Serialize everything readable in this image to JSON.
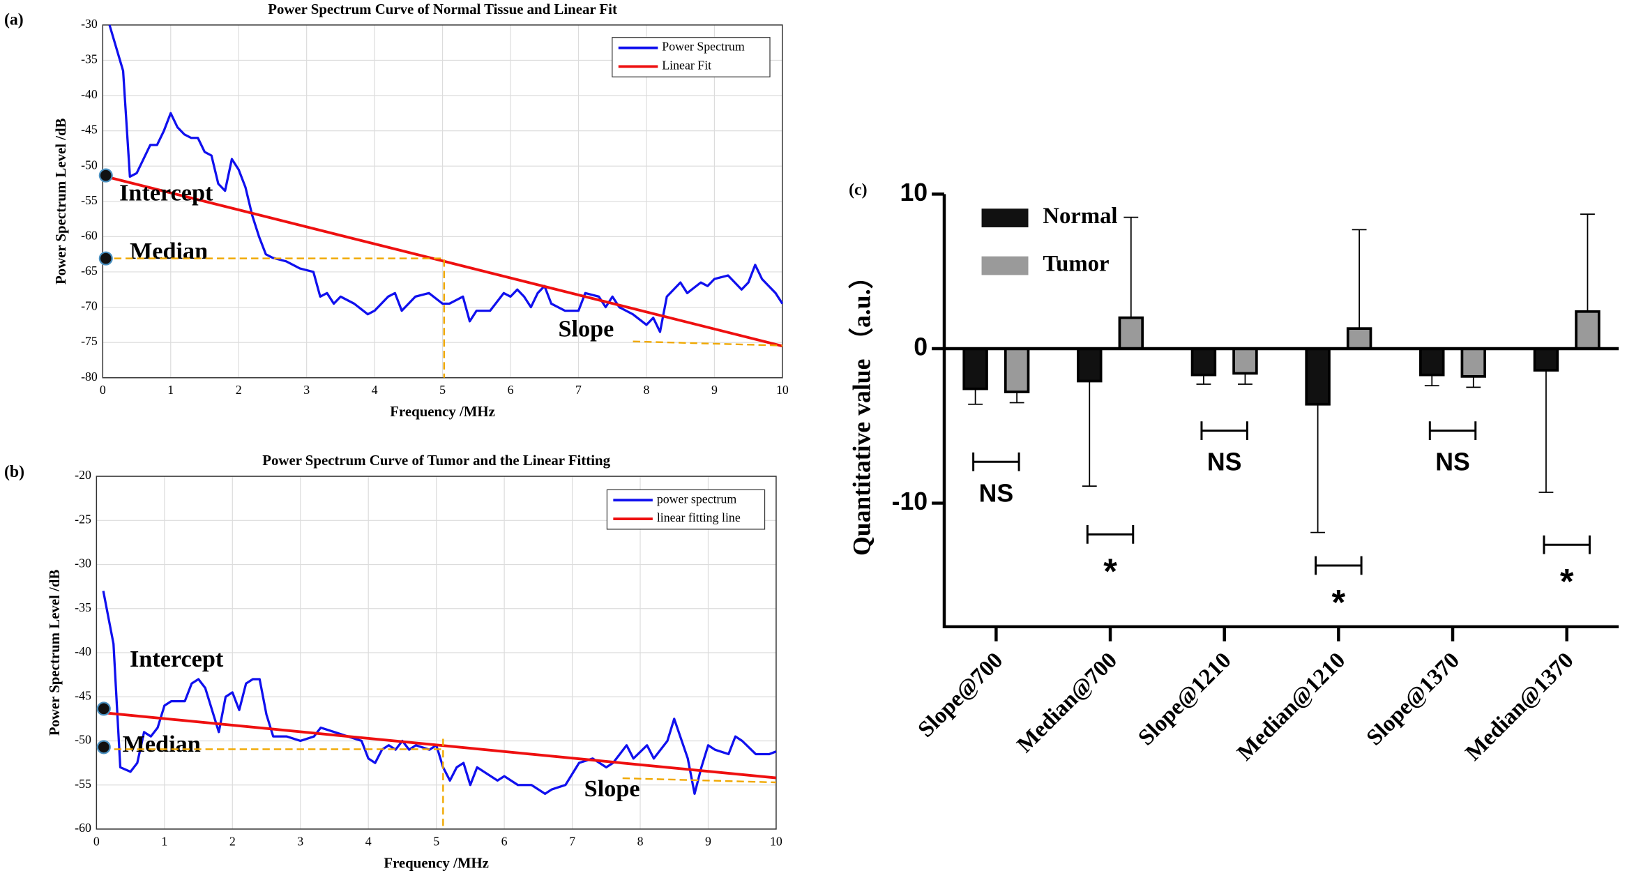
{
  "chart_data": [
    {
      "type": "line",
      "panel_label": "(a)",
      "title": "Power Spectrum Curve of Normal Tissue and Linear Fit",
      "xlabel": "Frequency /MHz",
      "ylabel": "Power Spectrum Level /dB",
      "xlim": [
        0,
        10
      ],
      "ylim": [
        -80,
        -30
      ],
      "xticks": [
        0,
        1,
        2,
        3,
        4,
        5,
        6,
        7,
        8,
        9,
        10
      ],
      "yticks": [
        -80,
        -75,
        -70,
        -65,
        -60,
        -55,
        -50,
        -45,
        -40,
        -35,
        -30
      ],
      "grid": true,
      "legend": "upper right",
      "annotations": [
        "Intercept",
        "Median",
        "Slope"
      ],
      "series": [
        {
          "name": "Power Spectrum",
          "color": "#1010ee",
          "x": [
            0.1,
            0.3,
            0.4,
            0.5,
            0.6,
            0.7,
            0.8,
            0.9,
            1.0,
            1.1,
            1.2,
            1.3,
            1.4,
            1.5,
            1.6,
            1.7,
            1.8,
            1.9,
            2.0,
            2.1,
            2.2,
            2.3,
            2.4,
            2.5,
            2.7,
            2.9,
            3.1,
            3.2,
            3.3,
            3.4,
            3.5,
            3.7,
            3.9,
            4.0,
            4.2,
            4.3,
            4.4,
            4.6,
            4.8,
            5.0,
            5.1,
            5.2,
            5.3,
            5.4,
            5.5,
            5.7,
            5.9,
            6.0,
            6.1,
            6.2,
            6.3,
            6.4,
            6.5,
            6.6,
            6.8,
            7.0,
            7.1,
            7.3,
            7.4,
            7.5,
            7.6,
            7.8,
            8.0,
            8.1,
            8.2,
            8.3,
            8.5,
            8.6,
            8.8,
            8.9,
            9.0,
            9.2,
            9.3,
            9.4,
            9.5,
            9.6,
            9.7,
            9.8,
            9.9,
            10.0
          ],
          "values": [
            -30,
            -36.5,
            -51.5,
            -51,
            -49,
            -47,
            -47,
            -45,
            -42.5,
            -44.5,
            -45.5,
            -46,
            -46,
            -48,
            -48.5,
            -52.5,
            -53.5,
            -49,
            -50.5,
            -53,
            -57,
            -60,
            -62.5,
            -63,
            -63.5,
            -64.5,
            -65,
            -68.5,
            -68,
            -69.5,
            -68.5,
            -69.5,
            -71,
            -70.5,
            -68.5,
            -68,
            -70.5,
            -68.5,
            -68,
            -69.5,
            -69.5,
            -69,
            -68.5,
            -72,
            -70.5,
            -70.5,
            -68,
            -68.5,
            -67.5,
            -68.5,
            -70,
            -68,
            -67,
            -69.5,
            -70.5,
            -70.5,
            -68,
            -68.5,
            -70,
            -68.5,
            -70,
            -71,
            -72.5,
            -71.5,
            -73.5,
            -68.5,
            -66.5,
            -68,
            -66.5,
            -67,
            -66,
            -65.5,
            -66.5,
            -67.5,
            -66.5,
            -64,
            -66,
            -67,
            -68,
            -69.5
          ]
        },
        {
          "name": "Linear Fit",
          "color": "#ee1010",
          "x": [
            0.05,
            10
          ],
          "values": [
            -51.5,
            -75.5
          ]
        }
      ]
    },
    {
      "type": "line",
      "panel_label": "(b)",
      "title": "Power Spectrum Curve of Tumor and the Linear Fitting",
      "xlabel": "Frequency /MHz",
      "ylabel": "Power Spectrum Level /dB",
      "xlim": [
        0,
        10
      ],
      "ylim": [
        -60,
        -20
      ],
      "xticks": [
        0,
        1,
        2,
        3,
        4,
        5,
        6,
        7,
        8,
        9,
        10
      ],
      "yticks": [
        -60,
        -55,
        -50,
        -45,
        -40,
        -35,
        -30,
        -25,
        -20
      ],
      "grid": true,
      "legend": "upper right",
      "annotations": [
        "Intercept",
        "Median",
        "Slope"
      ],
      "series": [
        {
          "name": "power spectrum",
          "color": "#1010ee",
          "x": [
            0.1,
            0.25,
            0.35,
            0.5,
            0.6,
            0.7,
            0.8,
            0.9,
            1.0,
            1.1,
            1.3,
            1.4,
            1.5,
            1.6,
            1.7,
            1.8,
            1.9,
            2.0,
            2.1,
            2.2,
            2.3,
            2.4,
            2.5,
            2.6,
            2.8,
            3.0,
            3.2,
            3.3,
            3.5,
            3.7,
            3.9,
            4.0,
            4.1,
            4.2,
            4.3,
            4.4,
            4.5,
            4.6,
            4.7,
            4.9,
            5.0,
            5.1,
            5.2,
            5.3,
            5.4,
            5.5,
            5.6,
            5.7,
            5.9,
            6.0,
            6.2,
            6.4,
            6.6,
            6.7,
            6.9,
            7.1,
            7.3,
            7.5,
            7.6,
            7.8,
            7.9,
            8.1,
            8.2,
            8.4,
            8.5,
            8.7,
            8.8,
            8.9,
            9.0,
            9.1,
            9.3,
            9.4,
            9.5,
            9.7,
            9.9,
            10.0
          ],
          "values": [
            -33,
            -39,
            -53,
            -53.5,
            -52.5,
            -49,
            -49.5,
            -48.5,
            -46,
            -45.5,
            -45.5,
            -43.5,
            -43,
            -44,
            -46.5,
            -49,
            -45,
            -44.5,
            -46.5,
            -43.5,
            -43,
            -43,
            -47,
            -49.5,
            -49.5,
            -50,
            -49.5,
            -48.5,
            -49,
            -49.5,
            -50,
            -52,
            -52.5,
            -51,
            -50.5,
            -51,
            -50,
            -51,
            -50.5,
            -51,
            -50.5,
            -53,
            -54.5,
            -53,
            -52.5,
            -55,
            -53,
            -53.5,
            -54.5,
            -54,
            -55,
            -55,
            -56,
            -55.5,
            -55,
            -52.5,
            -52,
            -53,
            -52.5,
            -50.5,
            -52,
            -50.5,
            -52,
            -50,
            -47.5,
            -52,
            -56,
            -53,
            -50.5,
            -51,
            -51.5,
            -49.5,
            -50,
            -51.5,
            -51.5,
            -51.2
          ]
        },
        {
          "name": "linear fitting line",
          "color": "#ee1010",
          "x": [
            0.1,
            10
          ],
          "values": [
            -46.8,
            -54.2
          ]
        }
      ]
    },
    {
      "type": "bar",
      "panel_label": "(c)",
      "ylabel": "Quantitative value （a.u.）",
      "categories": [
        "Slope@700",
        "Median@700",
        "Slope@1210",
        "Median@1210",
        "Slope@1370",
        "Median@1370"
      ],
      "ylim": [
        -18,
        10
      ],
      "yticks": [
        -10,
        0,
        10
      ],
      "legend": "upper left",
      "series": [
        {
          "name": "Normal",
          "color": "#111111",
          "values": [
            -2.6,
            -2.1,
            -1.7,
            -3.6,
            -1.7,
            -1.4
          ],
          "errors": [
            1.0,
            6.8,
            0.6,
            8.3,
            0.7,
            7.9
          ]
        },
        {
          "name": "Tumor",
          "color": "#9a9a9a",
          "values": [
            -2.8,
            2.0,
            -1.6,
            1.3,
            -1.8,
            2.4
          ],
          "errors": [
            0.7,
            6.5,
            0.7,
            6.4,
            0.7,
            6.3
          ]
        }
      ],
      "annotations": [
        "NS",
        "*",
        "NS",
        "*",
        "NS",
        "*"
      ]
    }
  ]
}
